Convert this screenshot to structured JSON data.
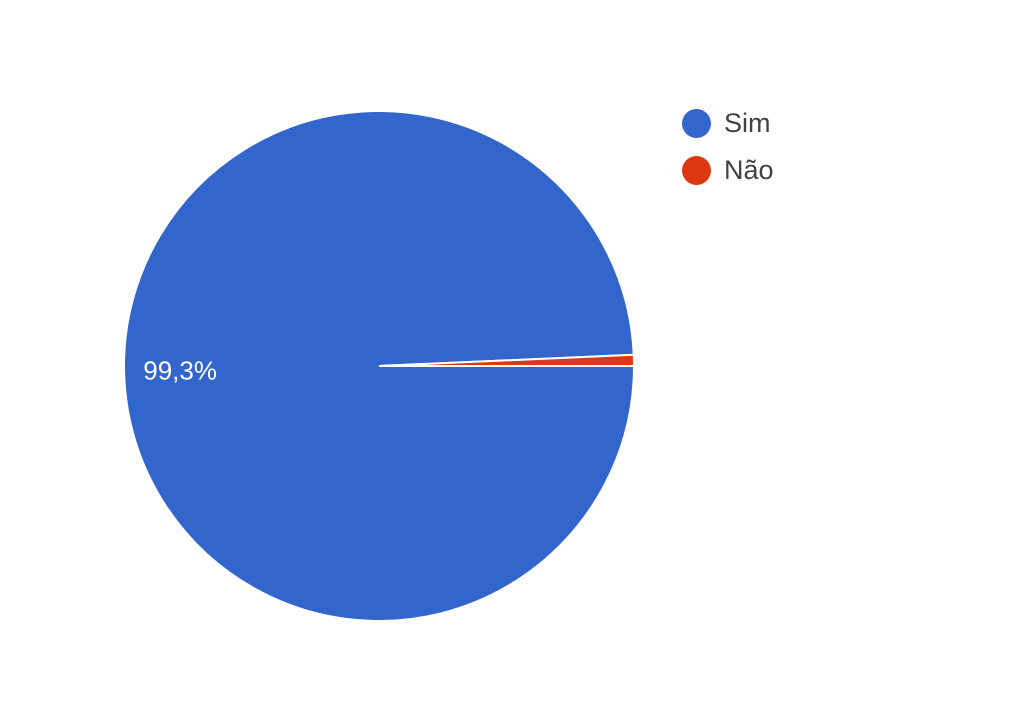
{
  "chart_data": {
    "type": "pie",
    "slices": [
      {
        "label": "Sim",
        "value": 99.3,
        "color": "#3366cc",
        "display": "99,3%"
      },
      {
        "label": "Não",
        "value": 0.7,
        "color": "#dc3912",
        "display": ""
      }
    ],
    "legend_position": "top-right"
  }
}
